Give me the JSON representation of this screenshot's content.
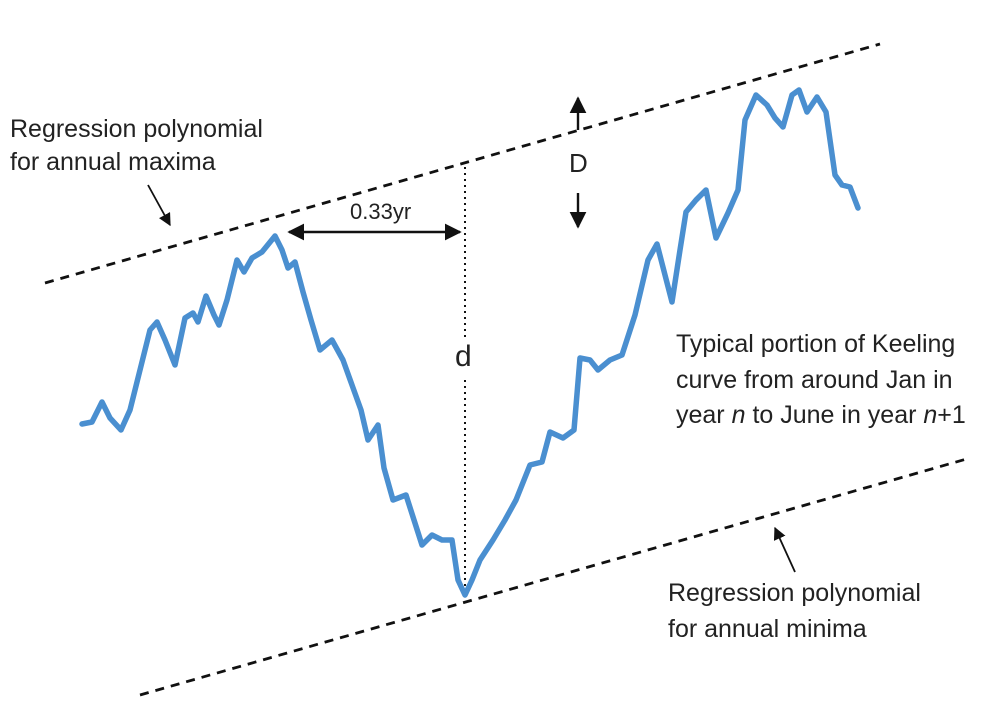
{
  "labels": {
    "max_line_line1": "Regression polynomial",
    "max_line_line2": "for annual maxima",
    "min_line_line1": "Regression polynomial",
    "min_line_line2": "for annual minima",
    "lag": "0.33yr",
    "depth_small": "d",
    "depth_large": "D",
    "desc_line1": "Typical portion of Keeling",
    "desc_line2": "curve from around Jan in",
    "desc_line3_a": "year ",
    "desc_line3_n": "n",
    "desc_line3_b": " to June in year ",
    "desc_line3_n2": "n",
    "desc_line3_c": "+1"
  },
  "colors": {
    "curve": "#4A8FD0",
    "lines": "#111111",
    "text": "#222222"
  }
}
